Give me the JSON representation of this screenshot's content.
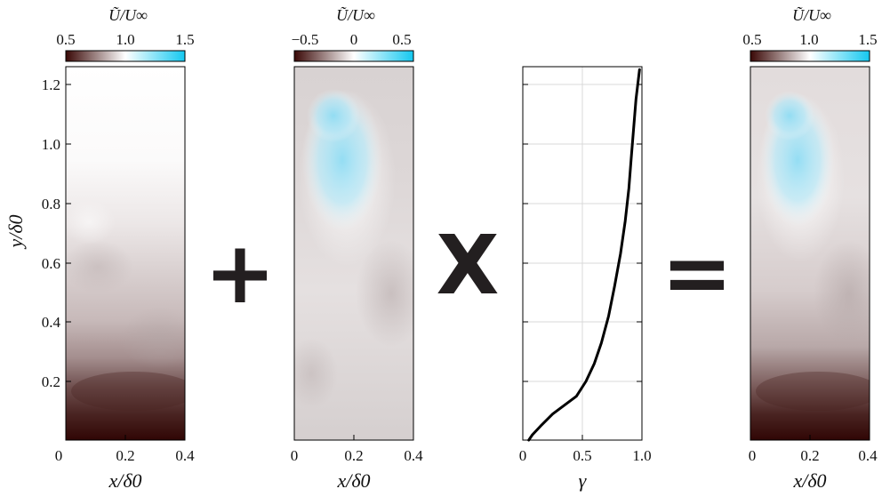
{
  "colorbars": {
    "left": {
      "label": "Ũ/U∞",
      "ticks": [
        "0.5",
        "1.0",
        "1.5"
      ]
    },
    "middle": {
      "label": "Ũ/U∞",
      "ticks": [
        "−0.5",
        "0",
        "0.5"
      ]
    },
    "right": {
      "label": "Ũ/U∞",
      "ticks": [
        "0.5",
        "1.0",
        "1.5"
      ]
    }
  },
  "panels": {
    "left": {
      "ylabel": "y/δ0",
      "xlabel": "x/δ0",
      "xticks": [
        "0",
        "0.2",
        "0.4"
      ],
      "yticks": [
        "1.2",
        "1.0",
        "0.8",
        "0.6",
        "0.4",
        "0.2"
      ]
    },
    "middle": {
      "xlabel": "x/δ0",
      "xticks": [
        "0",
        "0.2",
        "0.4"
      ]
    },
    "gamma": {
      "xlabel": "γ",
      "xticks": [
        "0",
        "0.5",
        "1.0"
      ],
      "xlim": [
        0,
        1.0
      ],
      "ylim": [
        0,
        1.25
      ]
    },
    "right": {
      "xlabel": "x/δ0",
      "xticks": [
        "0",
        "0.2",
        "0.4"
      ]
    }
  },
  "operators": {
    "plus": "+",
    "times": "X",
    "equals": "="
  },
  "colors": {
    "dark_end": "#3a0806",
    "mid": "#ffffff",
    "light_end": "#14c8f0",
    "operator": "#231f20"
  },
  "chart_data": {
    "type": "line",
    "xlabel": "γ",
    "ylabel": "",
    "xlim": [
      0,
      1.0
    ],
    "ylim": [
      0,
      1.25
    ],
    "grid": true,
    "x": [
      0.05,
      0.08,
      0.15,
      0.25,
      0.35,
      0.45,
      0.53,
      0.6,
      0.66,
      0.72,
      0.77,
      0.82,
      0.86,
      0.89,
      0.91,
      0.93,
      0.95,
      0.98
    ],
    "y": [
      0.0,
      0.02,
      0.05,
      0.09,
      0.12,
      0.15,
      0.2,
      0.26,
      0.33,
      0.42,
      0.52,
      0.63,
      0.74,
      0.85,
      0.95,
      1.05,
      1.15,
      1.25
    ]
  }
}
